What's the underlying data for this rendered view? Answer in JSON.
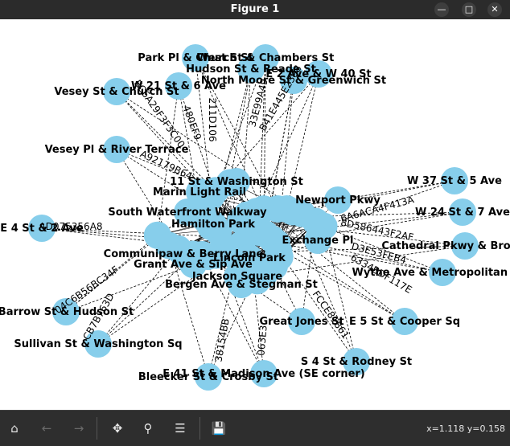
{
  "window": {
    "title": "Figure 1"
  },
  "graph": {
    "node_color": "#87ceeb",
    "edge_color": "#000000",
    "labeled_nodes": [
      "West St & Chambers St",
      "Park Pl & Church St",
      "Hudson St & Reade St",
      "North Moore St & Greenwich St",
      "E 2 Ave & W 40 St",
      "W 21 St & 6 Ave",
      "Vesey St & Church St",
      "Vesey Pl & River Terrace",
      "11 St & Washington St",
      "W 37 St & 5 Ave",
      "W 24 St & 7 Ave",
      "E 4 St & 2 Ave",
      "South Waterfront Walkway",
      "Cathedral Pkwy & Broadway",
      "Wythe Ave & Metropolitan Ave",
      "Grant Ave & Sip Ave",
      "Jackson Square",
      "Bergen Ave & Stegman St",
      "Barrow St & Hudson St",
      "Great Jones St",
      "E 5 St & Cooper Sq",
      "Sullivan St & Washington Sq",
      "S 4 St & Rodney St",
      "E 41 St & Madison Ave (SE corner)",
      "Bleecker St & Crosby St",
      "Marin Light Rail",
      "Lincoln Park",
      "Communipaw & Berry Lane",
      "Hamilton Park",
      "Exchange Pl",
      "Newport Pkwy"
    ],
    "edge_labels": [
      "AD075356A8",
      "04C6B56BC34F",
      "CB7B763D",
      "6334BDF117E",
      "D3E53FEB4",
      "8D586443F2AF",
      "6A6ACA4F413A",
      "B41E445E2398",
      "33E99A49",
      "EC6A29F3F3C00",
      "A92179B64",
      "38154BB",
      "063E3",
      "FCCE81861",
      "211D106",
      "480EF9"
    ]
  },
  "toolbar": {
    "home_icon": "home-icon",
    "back_icon": "back-arrow-icon",
    "forward_icon": "forward-arrow-icon",
    "pan_icon": "pan-icon",
    "zoom_icon": "zoom-icon",
    "configure_icon": "configure-subplots-icon",
    "save_icon": "save-icon"
  },
  "status": {
    "coords": "x=1.118 y=0.158"
  }
}
